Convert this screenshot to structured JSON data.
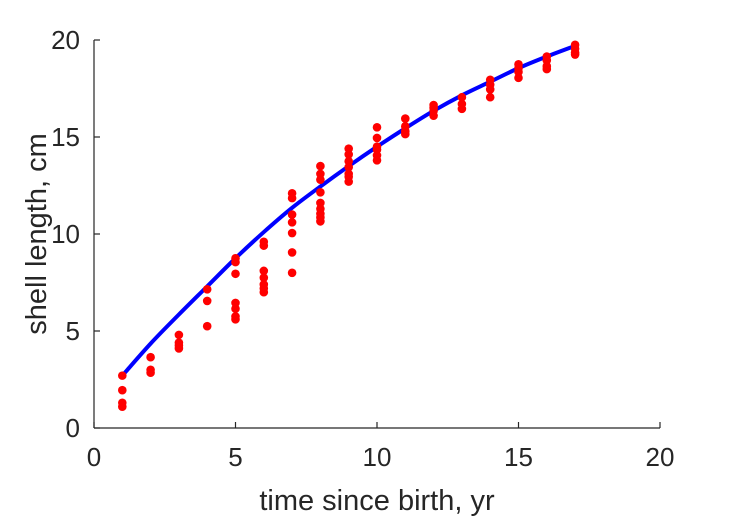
{
  "chart_data": {
    "type": "scatter",
    "title": "",
    "xlabel": "time since birth, yr",
    "ylabel": "shell length, cm",
    "xlim": [
      0,
      20
    ],
    "ylim": [
      0,
      20
    ],
    "xticks": [
      "0",
      "5",
      "10",
      "15",
      "20"
    ],
    "yticks": [
      "0",
      "5",
      "10",
      "15",
      "20"
    ],
    "grid": false,
    "legend": false,
    "colors": {
      "points": "#ff0000",
      "curve": "#0000ff",
      "axis": "#262626"
    },
    "series": [
      {
        "type": "scatter",
        "points": [
          [
            1,
            2.7
          ],
          [
            1,
            1.95
          ],
          [
            1,
            1.3
          ],
          [
            1,
            1.1
          ],
          [
            2,
            3.65
          ],
          [
            2,
            3.0
          ],
          [
            2,
            2.85
          ],
          [
            3,
            4.8
          ],
          [
            3,
            4.4
          ],
          [
            3,
            4.25
          ],
          [
            3,
            4.1
          ],
          [
            4,
            7.15
          ],
          [
            4,
            6.55
          ],
          [
            4,
            5.25
          ],
          [
            5,
            8.75
          ],
          [
            5,
            8.55
          ],
          [
            5,
            7.95
          ],
          [
            5,
            6.45
          ],
          [
            5,
            6.15
          ],
          [
            5,
            5.75
          ],
          [
            5,
            5.6
          ],
          [
            6,
            9.6
          ],
          [
            6,
            9.4
          ],
          [
            6,
            8.1
          ],
          [
            6,
            7.75
          ],
          [
            6,
            7.4
          ],
          [
            6,
            7.2
          ],
          [
            6,
            7.0
          ],
          [
            7,
            12.1
          ],
          [
            7,
            11.85
          ],
          [
            7,
            11.0
          ],
          [
            7,
            10.6
          ],
          [
            7,
            10.05
          ],
          [
            7,
            9.05
          ],
          [
            7,
            8.0
          ],
          [
            8,
            13.5
          ],
          [
            8,
            13.1
          ],
          [
            8,
            12.8
          ],
          [
            8,
            12.15
          ],
          [
            8,
            11.6
          ],
          [
            8,
            11.3
          ],
          [
            8,
            11.05
          ],
          [
            8,
            10.85
          ],
          [
            8,
            10.65
          ],
          [
            9,
            14.4
          ],
          [
            9,
            14.1
          ],
          [
            9,
            13.75
          ],
          [
            9,
            13.45
          ],
          [
            9,
            13.1
          ],
          [
            9,
            12.95
          ],
          [
            9,
            12.7
          ],
          [
            10,
            15.5
          ],
          [
            10,
            14.95
          ],
          [
            10,
            14.5
          ],
          [
            10,
            14.35
          ],
          [
            10,
            14.05
          ],
          [
            10,
            13.8
          ],
          [
            11,
            15.95
          ],
          [
            11,
            15.55
          ],
          [
            11,
            15.3
          ],
          [
            11,
            15.15
          ],
          [
            12,
            16.65
          ],
          [
            12,
            16.5
          ],
          [
            12,
            16.35
          ],
          [
            12,
            16.1
          ],
          [
            13,
            17.05
          ],
          [
            13,
            16.7
          ],
          [
            13,
            16.45
          ],
          [
            14,
            17.95
          ],
          [
            14,
            17.7
          ],
          [
            14,
            17.45
          ],
          [
            14,
            17.05
          ],
          [
            15,
            18.75
          ],
          [
            15,
            18.55
          ],
          [
            15,
            18.35
          ],
          [
            15,
            18.05
          ],
          [
            16,
            19.15
          ],
          [
            16,
            18.95
          ],
          [
            16,
            18.65
          ],
          [
            16,
            18.5
          ],
          [
            17,
            19.75
          ],
          [
            17,
            19.55
          ],
          [
            17,
            19.35
          ],
          [
            17,
            19.25
          ]
        ]
      },
      {
        "type": "line",
        "x": [
          1,
          2,
          3,
          4,
          5,
          6,
          7,
          8,
          9,
          10,
          11,
          12,
          13,
          14,
          15,
          16,
          17
        ],
        "y": [
          2.7,
          4.35,
          5.85,
          7.3,
          8.75,
          10.1,
          11.35,
          12.45,
          13.5,
          14.5,
          15.45,
          16.35,
          17.15,
          17.85,
          18.55,
          19.15,
          19.7
        ]
      }
    ]
  }
}
